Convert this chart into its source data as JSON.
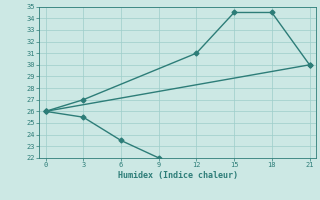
{
  "xlabel": "Humidex (Indice chaleur)",
  "line1_x": [
    0,
    3,
    12,
    15,
    18,
    21
  ],
  "line1_y": [
    26,
    27,
    31,
    34.5,
    34.5,
    30
  ],
  "line2_x": [
    0,
    3,
    6,
    9
  ],
  "line2_y": [
    26,
    25.5,
    23.5,
    22
  ],
  "line3_x": [
    0,
    21
  ],
  "line3_y": [
    26,
    30
  ],
  "color": "#2d7d78",
  "bg_color": "#cce8e4",
  "grid_color": "#9ececa",
  "xlim": [
    -0.5,
    21.5
  ],
  "ylim": [
    22,
    35
  ],
  "xticks": [
    0,
    3,
    6,
    9,
    12,
    15,
    18,
    21
  ],
  "yticks": [
    22,
    23,
    24,
    25,
    26,
    27,
    28,
    29,
    30,
    31,
    32,
    33,
    34,
    35
  ],
  "marker": "D",
  "markersize": 2.5,
  "linewidth": 1.0
}
